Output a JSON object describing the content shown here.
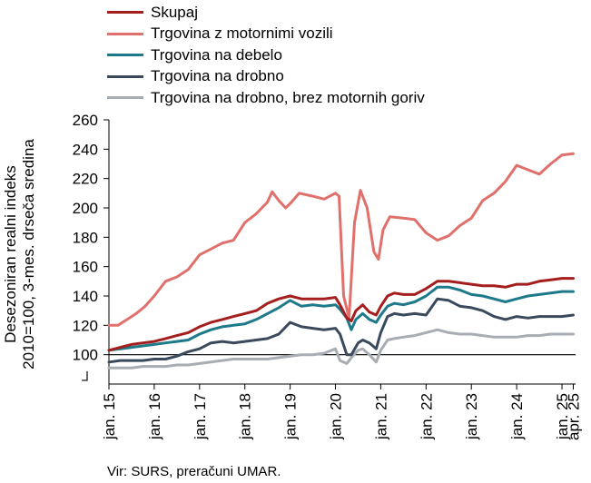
{
  "chart_data": {
    "type": "line",
    "ylabel_line1": "Desezoniran realni indeks",
    "ylabel_line2": "2010=100, 3-mes. drseča sredina",
    "ylim": [
      80,
      260
    ],
    "yticks": [
      100,
      120,
      140,
      160,
      180,
      200,
      220,
      240,
      260
    ],
    "x_axis_break": true,
    "xlim": [
      2015.0,
      2025.3
    ],
    "xticks": [
      {
        "x": 2015.0,
        "label": "jan. 15"
      },
      {
        "x": 2016.0,
        "label": "jan. 16"
      },
      {
        "x": 2017.0,
        "label": "jan. 17"
      },
      {
        "x": 2018.0,
        "label": "jan. 18"
      },
      {
        "x": 2019.0,
        "label": "jan. 19"
      },
      {
        "x": 2020.0,
        "label": "jan. 20"
      },
      {
        "x": 2021.0,
        "label": "jan. 21"
      },
      {
        "x": 2022.0,
        "label": "jan. 22"
      },
      {
        "x": 2023.0,
        "label": "jan. 23"
      },
      {
        "x": 2024.0,
        "label": "jan. 24"
      },
      {
        "x": 2025.0,
        "label": "jan. 25"
      },
      {
        "x": 2025.25,
        "label": "apr. 25"
      }
    ],
    "reference_line": 100,
    "legend_position": "top-left",
    "series": [
      {
        "name": "Skupaj",
        "color": "#A51E1E",
        "points": [
          [
            2015.0,
            103
          ],
          [
            2015.25,
            105
          ],
          [
            2015.5,
            107
          ],
          [
            2015.75,
            108
          ],
          [
            2016.0,
            109
          ],
          [
            2016.25,
            111
          ],
          [
            2016.5,
            113
          ],
          [
            2016.75,
            115
          ],
          [
            2017.0,
            119
          ],
          [
            2017.25,
            122
          ],
          [
            2017.5,
            124
          ],
          [
            2017.75,
            126
          ],
          [
            2018.0,
            128
          ],
          [
            2018.25,
            130
          ],
          [
            2018.5,
            135
          ],
          [
            2018.75,
            138
          ],
          [
            2019.0,
            140
          ],
          [
            2019.25,
            138
          ],
          [
            2019.5,
            138
          ],
          [
            2019.75,
            138
          ],
          [
            2020.0,
            139
          ],
          [
            2020.1,
            134
          ],
          [
            2020.25,
            125
          ],
          [
            2020.35,
            123
          ],
          [
            2020.45,
            130
          ],
          [
            2020.6,
            134
          ],
          [
            2020.75,
            129
          ],
          [
            2020.9,
            127
          ],
          [
            2021.0,
            133
          ],
          [
            2021.15,
            140
          ],
          [
            2021.3,
            142
          ],
          [
            2021.5,
            141
          ],
          [
            2021.75,
            141
          ],
          [
            2022.0,
            145
          ],
          [
            2022.25,
            150
          ],
          [
            2022.5,
            150
          ],
          [
            2022.75,
            149
          ],
          [
            2023.0,
            148
          ],
          [
            2023.25,
            147
          ],
          [
            2023.5,
            147
          ],
          [
            2023.75,
            146
          ],
          [
            2024.0,
            148
          ],
          [
            2024.25,
            148
          ],
          [
            2024.5,
            150
          ],
          [
            2024.75,
            151
          ],
          [
            2025.0,
            152
          ],
          [
            2025.25,
            152
          ]
        ]
      },
      {
        "name": "Trgovina z motornimi vozili",
        "color": "#E0706C",
        "points": [
          [
            2015.0,
            120
          ],
          [
            2015.2,
            120
          ],
          [
            2015.4,
            124
          ],
          [
            2015.6,
            128
          ],
          [
            2015.8,
            133
          ],
          [
            2016.0,
            140
          ],
          [
            2016.25,
            150
          ],
          [
            2016.5,
            153
          ],
          [
            2016.75,
            158
          ],
          [
            2017.0,
            168
          ],
          [
            2017.25,
            172
          ],
          [
            2017.5,
            176
          ],
          [
            2017.75,
            178
          ],
          [
            2018.0,
            190
          ],
          [
            2018.25,
            196
          ],
          [
            2018.5,
            204
          ],
          [
            2018.6,
            211
          ],
          [
            2018.75,
            205
          ],
          [
            2018.9,
            200
          ],
          [
            2019.0,
            203
          ],
          [
            2019.2,
            210
          ],
          [
            2019.5,
            208
          ],
          [
            2019.75,
            206
          ],
          [
            2020.0,
            210
          ],
          [
            2020.08,
            208
          ],
          [
            2020.18,
            140
          ],
          [
            2020.3,
            125
          ],
          [
            2020.42,
            190
          ],
          [
            2020.55,
            212
          ],
          [
            2020.7,
            200
          ],
          [
            2020.85,
            170
          ],
          [
            2020.95,
            165
          ],
          [
            2021.05,
            185
          ],
          [
            2021.2,
            194
          ],
          [
            2021.5,
            193
          ],
          [
            2021.75,
            192
          ],
          [
            2022.0,
            183
          ],
          [
            2022.25,
            178
          ],
          [
            2022.5,
            181
          ],
          [
            2022.75,
            188
          ],
          [
            2023.0,
            193
          ],
          [
            2023.25,
            205
          ],
          [
            2023.5,
            210
          ],
          [
            2023.75,
            218
          ],
          [
            2024.0,
            229
          ],
          [
            2024.25,
            226
          ],
          [
            2024.5,
            223
          ],
          [
            2024.75,
            230
          ],
          [
            2025.0,
            236
          ],
          [
            2025.25,
            237
          ]
        ]
      },
      {
        "name": "Trgovina na debelo",
        "color": "#1E7A8A",
        "points": [
          [
            2015.0,
            103
          ],
          [
            2015.25,
            104
          ],
          [
            2015.5,
            105
          ],
          [
            2015.75,
            106
          ],
          [
            2016.0,
            107
          ],
          [
            2016.25,
            108
          ],
          [
            2016.5,
            109
          ],
          [
            2016.75,
            110
          ],
          [
            2017.0,
            114
          ],
          [
            2017.25,
            117
          ],
          [
            2017.5,
            119
          ],
          [
            2017.75,
            120
          ],
          [
            2018.0,
            121
          ],
          [
            2018.25,
            124
          ],
          [
            2018.5,
            128
          ],
          [
            2018.75,
            132
          ],
          [
            2019.0,
            137
          ],
          [
            2019.25,
            133
          ],
          [
            2019.5,
            134
          ],
          [
            2019.75,
            133
          ],
          [
            2020.0,
            134
          ],
          [
            2020.1,
            131
          ],
          [
            2020.25,
            125
          ],
          [
            2020.35,
            117
          ],
          [
            2020.45,
            124
          ],
          [
            2020.6,
            128
          ],
          [
            2020.75,
            124
          ],
          [
            2020.9,
            122
          ],
          [
            2021.0,
            127
          ],
          [
            2021.15,
            133
          ],
          [
            2021.3,
            135
          ],
          [
            2021.5,
            134
          ],
          [
            2021.75,
            136
          ],
          [
            2022.0,
            140
          ],
          [
            2022.25,
            146
          ],
          [
            2022.5,
            146
          ],
          [
            2022.75,
            144
          ],
          [
            2023.0,
            141
          ],
          [
            2023.25,
            140
          ],
          [
            2023.5,
            138
          ],
          [
            2023.75,
            136
          ],
          [
            2024.0,
            138
          ],
          [
            2024.25,
            140
          ],
          [
            2024.5,
            141
          ],
          [
            2024.75,
            142
          ],
          [
            2025.0,
            143
          ],
          [
            2025.25,
            143
          ]
        ]
      },
      {
        "name": "Trgovina na drobno",
        "color": "#3A4A5C",
        "points": [
          [
            2015.0,
            95
          ],
          [
            2015.25,
            96
          ],
          [
            2015.5,
            96
          ],
          [
            2015.75,
            96
          ],
          [
            2016.0,
            97
          ],
          [
            2016.25,
            97
          ],
          [
            2016.5,
            99
          ],
          [
            2016.75,
            102
          ],
          [
            2017.0,
            104
          ],
          [
            2017.25,
            108
          ],
          [
            2017.5,
            109
          ],
          [
            2017.75,
            108
          ],
          [
            2018.0,
            109
          ],
          [
            2018.25,
            110
          ],
          [
            2018.5,
            111
          ],
          [
            2018.75,
            114
          ],
          [
            2019.0,
            122
          ],
          [
            2019.25,
            119
          ],
          [
            2019.5,
            118
          ],
          [
            2019.75,
            117
          ],
          [
            2020.0,
            118
          ],
          [
            2020.1,
            114
          ],
          [
            2020.25,
            100
          ],
          [
            2020.35,
            100
          ],
          [
            2020.5,
            108
          ],
          [
            2020.6,
            110
          ],
          [
            2020.75,
            108
          ],
          [
            2020.9,
            104
          ],
          [
            2021.0,
            115
          ],
          [
            2021.15,
            126
          ],
          [
            2021.3,
            128
          ],
          [
            2021.5,
            127
          ],
          [
            2021.75,
            128
          ],
          [
            2022.0,
            127
          ],
          [
            2022.25,
            138
          ],
          [
            2022.5,
            137
          ],
          [
            2022.75,
            133
          ],
          [
            2023.0,
            132
          ],
          [
            2023.25,
            130
          ],
          [
            2023.5,
            126
          ],
          [
            2023.75,
            124
          ],
          [
            2024.0,
            126
          ],
          [
            2024.25,
            125
          ],
          [
            2024.5,
            126
          ],
          [
            2024.75,
            126
          ],
          [
            2025.0,
            126
          ],
          [
            2025.25,
            127
          ]
        ]
      },
      {
        "name": "Trgovina na drobno, brez motornih goriv",
        "color": "#A8ADB3",
        "points": [
          [
            2015.0,
            91
          ],
          [
            2015.25,
            91
          ],
          [
            2015.5,
            91
          ],
          [
            2015.75,
            92
          ],
          [
            2016.0,
            92
          ],
          [
            2016.25,
            92
          ],
          [
            2016.5,
            93
          ],
          [
            2016.75,
            93
          ],
          [
            2017.0,
            94
          ],
          [
            2017.25,
            95
          ],
          [
            2017.5,
            96
          ],
          [
            2017.75,
            97
          ],
          [
            2018.0,
            97
          ],
          [
            2018.25,
            97
          ],
          [
            2018.5,
            97
          ],
          [
            2018.75,
            98
          ],
          [
            2019.0,
            99
          ],
          [
            2019.25,
            100
          ],
          [
            2019.5,
            100
          ],
          [
            2019.75,
            101
          ],
          [
            2020.0,
            104
          ],
          [
            2020.1,
            96
          ],
          [
            2020.25,
            94
          ],
          [
            2020.35,
            98
          ],
          [
            2020.5,
            103
          ],
          [
            2020.6,
            104
          ],
          [
            2020.75,
            100
          ],
          [
            2020.9,
            95
          ],
          [
            2021.0,
            103
          ],
          [
            2021.15,
            110
          ],
          [
            2021.3,
            111
          ],
          [
            2021.5,
            112
          ],
          [
            2021.75,
            113
          ],
          [
            2022.0,
            115
          ],
          [
            2022.25,
            117
          ],
          [
            2022.5,
            115
          ],
          [
            2022.75,
            114
          ],
          [
            2023.0,
            114
          ],
          [
            2023.25,
            113
          ],
          [
            2023.5,
            112
          ],
          [
            2023.75,
            112
          ],
          [
            2024.0,
            112
          ],
          [
            2024.25,
            113
          ],
          [
            2024.5,
            113
          ],
          [
            2024.75,
            114
          ],
          [
            2025.0,
            114
          ],
          [
            2025.25,
            114
          ]
        ]
      }
    ]
  },
  "source": "Vir: SURS, preračuni UMAR."
}
